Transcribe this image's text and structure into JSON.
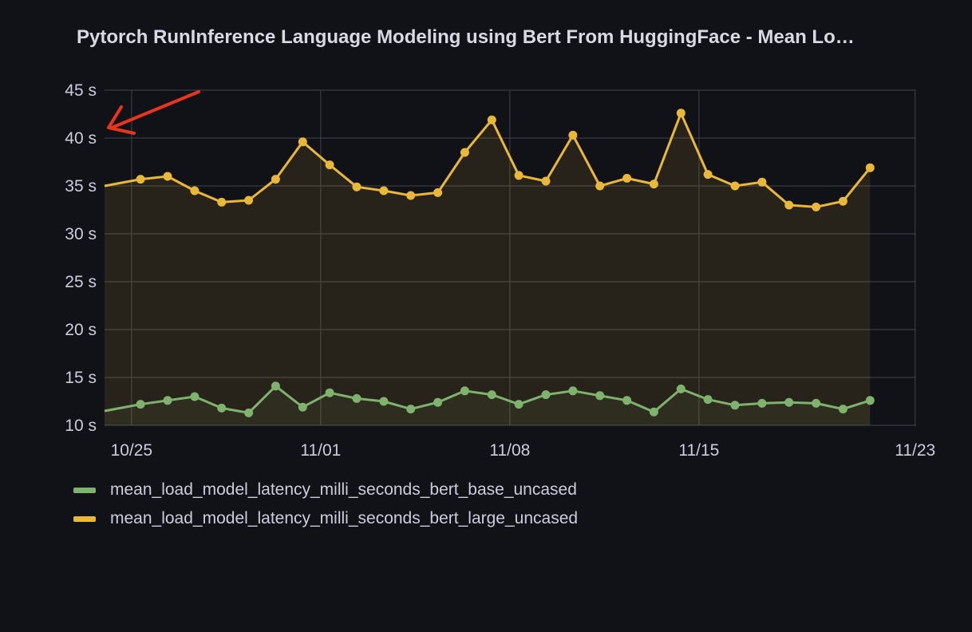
{
  "panel": {
    "title": "Pytorch RunInference Language Modeling using Bert From HuggingFace - Mean Lo…"
  },
  "colors": {
    "background": "#111217",
    "grid": "#3a3b42",
    "base_series": "#7eb26d",
    "large_series": "#eab839",
    "annotation_arrow": "#e8361e"
  },
  "chart_data": {
    "type": "line",
    "y_unit": "s",
    "ylim": [
      10,
      45
    ],
    "y_ticks": [
      "10 s",
      "15 s",
      "20 s",
      "25 s",
      "30 s",
      "35 s",
      "40 s",
      "45 s"
    ],
    "x_ticks": [
      {
        "label": "10/25",
        "date": "2022-10-25"
      },
      {
        "label": "11/01",
        "date": "2022-11-01"
      },
      {
        "label": "11/08",
        "date": "2022-11-08"
      },
      {
        "label": "11/15",
        "date": "2022-11-15"
      },
      {
        "label": "11/23",
        "date": "2022-11-23"
      }
    ],
    "xlim": [
      "2022-10-24T00:00",
      "2022-11-23T00:00"
    ],
    "grid": true,
    "fill_area": true,
    "legend_position": "bottom-left",
    "series": [
      {
        "name": "mean_load_model_latency_milli_seconds_bert_base_uncased",
        "color": "#7eb26d",
        "points": [
          [
            "2022-10-24T00:00",
            11.5
          ],
          [
            "2022-10-25T08:00",
            12.2
          ],
          [
            "2022-10-26T08:00",
            12.6
          ],
          [
            "2022-10-27T08:00",
            13.0
          ],
          [
            "2022-10-28T08:00",
            11.8
          ],
          [
            "2022-10-29T08:00",
            11.3
          ],
          [
            "2022-10-30T08:00",
            14.1
          ],
          [
            "2022-10-31T08:00",
            11.9
          ],
          [
            "2022-11-01T08:00",
            13.4
          ],
          [
            "2022-11-02T08:00",
            12.8
          ],
          [
            "2022-11-03T08:00",
            12.5
          ],
          [
            "2022-11-04T08:00",
            11.7
          ],
          [
            "2022-11-05T08:00",
            12.4
          ],
          [
            "2022-11-06T08:00",
            13.6
          ],
          [
            "2022-11-07T08:00",
            13.2
          ],
          [
            "2022-11-08T08:00",
            12.2
          ],
          [
            "2022-11-09T08:00",
            13.2
          ],
          [
            "2022-11-10T08:00",
            13.6
          ],
          [
            "2022-11-11T08:00",
            13.1
          ],
          [
            "2022-11-12T08:00",
            12.6
          ],
          [
            "2022-11-13T08:00",
            11.4
          ],
          [
            "2022-11-14T08:00",
            13.8
          ],
          [
            "2022-11-15T08:00",
            12.7
          ],
          [
            "2022-11-16T08:00",
            12.1
          ],
          [
            "2022-11-17T08:00",
            12.3
          ],
          [
            "2022-11-18T08:00",
            12.4
          ],
          [
            "2022-11-19T08:00",
            12.3
          ],
          [
            "2022-11-20T08:00",
            11.7
          ],
          [
            "2022-11-21T08:00",
            12.6
          ]
        ]
      },
      {
        "name": "mean_load_model_latency_milli_seconds_bert_large_uncased",
        "color": "#eab839",
        "points": [
          [
            "2022-10-24T00:00",
            35.0
          ],
          [
            "2022-10-25T08:00",
            35.7
          ],
          [
            "2022-10-26T08:00",
            36.0
          ],
          [
            "2022-10-27T08:00",
            34.5
          ],
          [
            "2022-10-28T08:00",
            33.3
          ],
          [
            "2022-10-29T08:00",
            33.5
          ],
          [
            "2022-10-30T08:00",
            35.7
          ],
          [
            "2022-10-31T08:00",
            39.6
          ],
          [
            "2022-11-01T08:00",
            37.2
          ],
          [
            "2022-11-02T08:00",
            34.9
          ],
          [
            "2022-11-03T08:00",
            34.5
          ],
          [
            "2022-11-04T08:00",
            34.0
          ],
          [
            "2022-11-05T08:00",
            34.3
          ],
          [
            "2022-11-06T08:00",
            38.5
          ],
          [
            "2022-11-07T08:00",
            41.9
          ],
          [
            "2022-11-08T08:00",
            36.1
          ],
          [
            "2022-11-09T08:00",
            35.5
          ],
          [
            "2022-11-10T08:00",
            40.3
          ],
          [
            "2022-11-11T08:00",
            35.0
          ],
          [
            "2022-11-12T08:00",
            35.8
          ],
          [
            "2022-11-13T08:00",
            35.2
          ],
          [
            "2022-11-14T08:00",
            42.6
          ],
          [
            "2022-11-15T08:00",
            36.2
          ],
          [
            "2022-11-16T08:00",
            35.0
          ],
          [
            "2022-11-17T08:00",
            35.4
          ],
          [
            "2022-11-18T08:00",
            33.0
          ],
          [
            "2022-11-19T08:00",
            32.8
          ],
          [
            "2022-11-20T08:00",
            33.4
          ],
          [
            "2022-11-21T08:00",
            36.9
          ]
        ]
      }
    ]
  }
}
